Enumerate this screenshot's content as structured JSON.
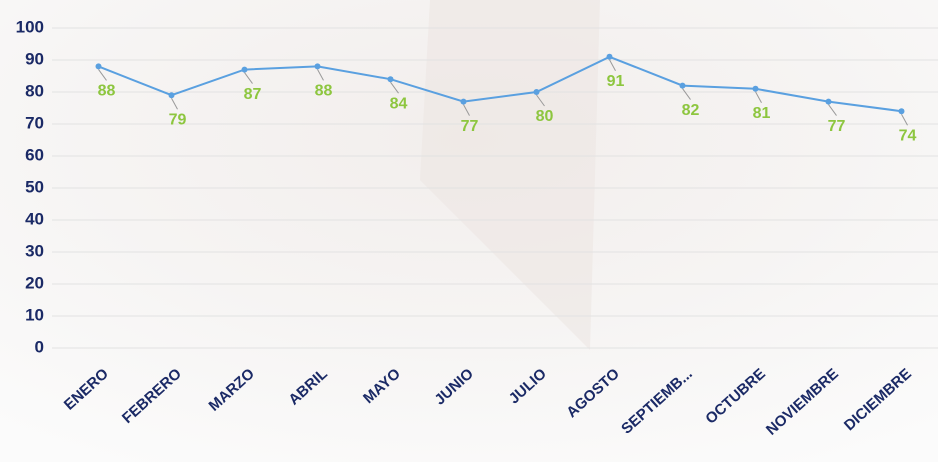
{
  "chart_data": {
    "type": "line",
    "categories": [
      "ENERO",
      "FEBRERO",
      "MARZO",
      "ABRIL",
      "MAYO",
      "JUNIO",
      "JULIO",
      "AGOSTO",
      "SEPTIEMB...",
      "OCTUBRE",
      "NOVIEMBRE",
      "DICIEMBRE"
    ],
    "values": [
      88,
      79,
      87,
      88,
      84,
      77,
      80,
      91,
      82,
      81,
      77,
      74
    ],
    "color": "#5aa0e0",
    "label_color": "#8dc63f",
    "ylim": [
      0,
      100
    ],
    "yticks": [
      0,
      10,
      20,
      30,
      40,
      50,
      60,
      70,
      80,
      90,
      100
    ],
    "grid": true
  }
}
